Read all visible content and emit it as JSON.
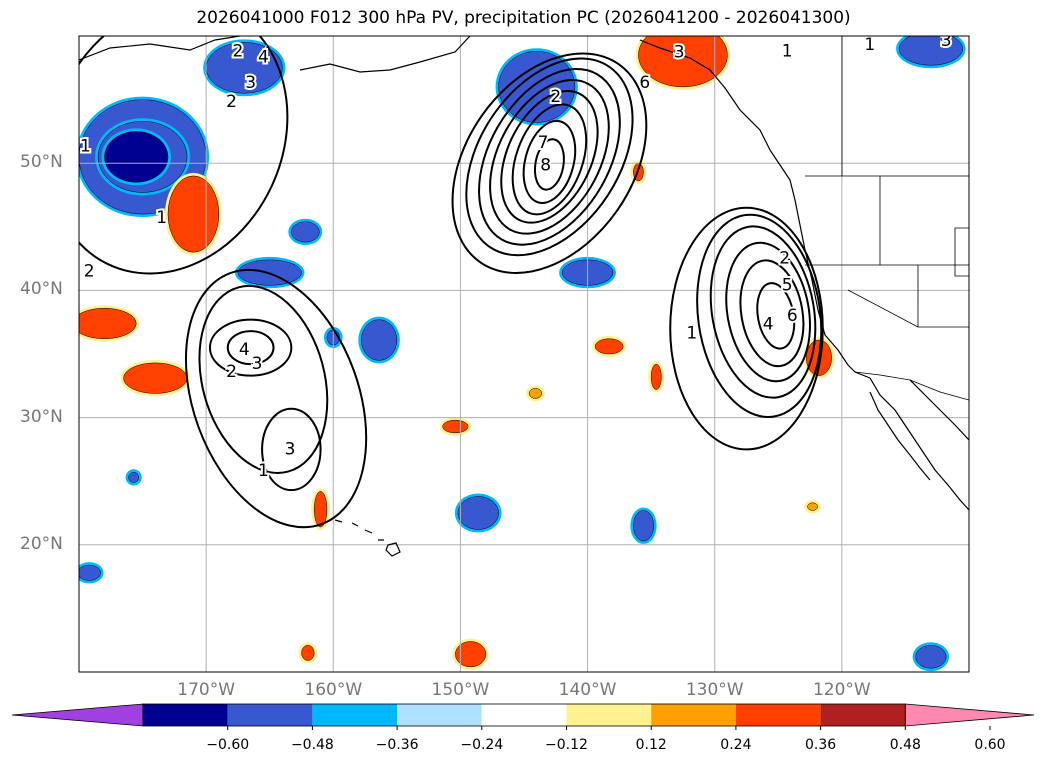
{
  "title": "2026041000 F012 300 hPa PV, precipitation PC (2026041200 - 2026041300)",
  "map": {
    "lon_range": [
      -180,
      -110
    ],
    "lat_range": [
      10,
      60
    ],
    "lat_ticks": [
      {
        "lat": 50,
        "label": "50°N"
      },
      {
        "lat": 40,
        "label": "40°N"
      },
      {
        "lat": 30,
        "label": "30°N"
      },
      {
        "lat": 20,
        "label": "20°N"
      }
    ],
    "lon_ticks": [
      {
        "lon": -170,
        "label": "170°W"
      },
      {
        "lon": -160,
        "label": "160°W"
      },
      {
        "lon": -150,
        "label": "150°W"
      },
      {
        "lon": -140,
        "label": "140°W"
      },
      {
        "lon": -130,
        "label": "130°W"
      },
      {
        "lon": -120,
        "label": "120°W"
      }
    ],
    "contour_labels": [
      {
        "text": "2",
        "lon": -167.5,
        "lat": 58.8
      },
      {
        "text": "4",
        "lon": -165.5,
        "lat": 58.3
      },
      {
        "text": "3",
        "lon": -166.5,
        "lat": 56.3
      },
      {
        "text": "2",
        "lon": -168,
        "lat": 54.8
      },
      {
        "text": "1",
        "lon": -179.5,
        "lat": 51.3
      },
      {
        "text": "1",
        "lon": -173.5,
        "lat": 45.7
      },
      {
        "text": "2",
        "lon": -179.2,
        "lat": 41.5
      },
      {
        "text": "2",
        "lon": -142.5,
        "lat": 55.2
      },
      {
        "text": "7",
        "lon": -143.5,
        "lat": 51.6
      },
      {
        "text": "8",
        "lon": -143.3,
        "lat": 49.8
      },
      {
        "text": "6",
        "lon": -135.5,
        "lat": 56.3
      },
      {
        "text": "3",
        "lon": -132.8,
        "lat": 58.7
      },
      {
        "text": "1",
        "lon": -124.3,
        "lat": 58.8
      },
      {
        "text": "1",
        "lon": -117.8,
        "lat": 59.3
      },
      {
        "text": "3",
        "lon": -111.8,
        "lat": 59.6
      },
      {
        "text": "2",
        "lon": -124.5,
        "lat": 42.5
      },
      {
        "text": "5",
        "lon": -124.3,
        "lat": 40.4
      },
      {
        "text": "6",
        "lon": -123.9,
        "lat": 38.0
      },
      {
        "text": "4",
        "lon": -125.8,
        "lat": 37.3
      },
      {
        "text": "1",
        "lon": -131.8,
        "lat": 36.6
      },
      {
        "text": "4",
        "lon": -167,
        "lat": 35.3
      },
      {
        "text": "3",
        "lon": -166,
        "lat": 34.2
      },
      {
        "text": "2",
        "lon": -168,
        "lat": 33.6
      },
      {
        "text": "3",
        "lon": -163.4,
        "lat": 27.5
      },
      {
        "text": "1",
        "lon": -165.5,
        "lat": 25.8
      }
    ],
    "pv_contours": [
      {
        "level": 1,
        "cx": -173,
        "cy": 52,
        "rx": 9,
        "ry": 11,
        "rot": 25
      },
      {
        "level": 1,
        "cx": -164.5,
        "cy": 31.5,
        "rx": 6.5,
        "ry": 10.5,
        "rot": -20
      },
      {
        "level": 2,
        "cx": -165.5,
        "cy": 33,
        "rx": 4.8,
        "ry": 7.5,
        "rot": -15
      },
      {
        "level": 3,
        "cx": -166.5,
        "cy": 35.5,
        "rx": 3.2,
        "ry": 2.2,
        "rot": 0
      },
      {
        "level": 3,
        "cx": -163.3,
        "cy": 27.5,
        "rx": 2.3,
        "ry": 3.2,
        "rot": 0
      },
      {
        "level": 4,
        "cx": -166.5,
        "cy": 35.5,
        "rx": 1.8,
        "ry": 1.3,
        "rot": 0
      },
      {
        "level": 1,
        "cx": -143,
        "cy": 50,
        "rx": 6.5,
        "ry": 9.5,
        "rot": 35
      },
      {
        "level": 2,
        "cx": -143,
        "cy": 50.5,
        "rx": 5.5,
        "ry": 8.5,
        "rot": 33
      },
      {
        "level": 3,
        "cx": -143,
        "cy": 50.5,
        "rx": 4.7,
        "ry": 7.5,
        "rot": 30
      },
      {
        "level": 4,
        "cx": -143,
        "cy": 50.5,
        "rx": 4.0,
        "ry": 6.5,
        "rot": 28
      },
      {
        "level": 5,
        "cx": -143,
        "cy": 50.5,
        "rx": 3.3,
        "ry": 5.5,
        "rot": 25
      },
      {
        "level": 6,
        "cx": -143,
        "cy": 50.3,
        "rx": 2.6,
        "ry": 4.5,
        "rot": 20
      },
      {
        "level": 7,
        "cx": -143,
        "cy": 50.1,
        "rx": 1.9,
        "ry": 3.3,
        "rot": 15
      },
      {
        "level": 8,
        "cx": -143,
        "cy": 49.9,
        "rx": 1.1,
        "ry": 2.0,
        "rot": 10
      },
      {
        "level": 1,
        "cx": -127.5,
        "cy": 37,
        "rx": 6.0,
        "ry": 9.5,
        "rot": 0
      },
      {
        "level": 2,
        "cx": -126.5,
        "cy": 38,
        "rx": 4.8,
        "ry": 8.0,
        "rot": -8
      },
      {
        "level": 3,
        "cx": -126.2,
        "cy": 38.3,
        "rx": 4.0,
        "ry": 6.8,
        "rot": -10
      },
      {
        "level": 4,
        "cx": -125.8,
        "cy": 38.3,
        "rx": 3.2,
        "ry": 5.5,
        "rot": -10
      },
      {
        "level": 5,
        "cx": -125.5,
        "cy": 38.2,
        "rx": 2.4,
        "ry": 4.2,
        "rot": -10
      },
      {
        "level": 6,
        "cx": -125.2,
        "cy": 38.0,
        "rx": 1.4,
        "ry": 2.6,
        "rot": -10
      }
    ],
    "precip_blobs": [
      {
        "cat": "neg3",
        "cx": -175,
        "cy": 50.5,
        "rx": 5,
        "ry": 4.5
      },
      {
        "cat": "neg4",
        "cx": -175,
        "cy": 50.5,
        "rx": 3.5,
        "ry": 2.8
      },
      {
        "cat": "neg5",
        "cx": -175.5,
        "cy": 50.5,
        "rx": 2.5,
        "ry": 2.0
      },
      {
        "cat": "neg3",
        "cx": -167,
        "cy": 57.5,
        "rx": 3,
        "ry": 2
      },
      {
        "cat": "neg3",
        "cx": -165,
        "cy": 41.4,
        "rx": 2.5,
        "ry": 1.0
      },
      {
        "cat": "neg3",
        "cx": -162.2,
        "cy": 44.6,
        "rx": 1.1,
        "ry": 0.8
      },
      {
        "cat": "neg3",
        "cx": -160,
        "cy": 36.3,
        "rx": 0.5,
        "ry": 0.6
      },
      {
        "cat": "neg3",
        "cx": -156.4,
        "cy": 36.1,
        "rx": 1.4,
        "ry": 1.6
      },
      {
        "cat": "neg3",
        "cx": -144,
        "cy": 56,
        "rx": 3,
        "ry": 2.8
      },
      {
        "cat": "neg3",
        "cx": -140,
        "cy": 41.4,
        "rx": 2,
        "ry": 1.0
      },
      {
        "cat": "neg3",
        "cx": -148.6,
        "cy": 22.5,
        "rx": 1.6,
        "ry": 1.3
      },
      {
        "cat": "neg3",
        "cx": -135.6,
        "cy": 21.5,
        "rx": 0.8,
        "ry": 1.2
      },
      {
        "cat": "neg3",
        "cx": -113,
        "cy": 11.2,
        "rx": 1.2,
        "ry": 0.9
      },
      {
        "cat": "neg3",
        "cx": -113,
        "cy": 59,
        "rx": 2.5,
        "ry": 1.3
      },
      {
        "cat": "neg3",
        "cx": -179.2,
        "cy": 17.8,
        "rx": 0.9,
        "ry": 0.6
      },
      {
        "cat": "neg3",
        "cx": -175.7,
        "cy": 25.3,
        "rx": 0.4,
        "ry": 0.4
      },
      {
        "cat": "pos4",
        "cx": -171,
        "cy": 46,
        "rx": 2,
        "ry": 3
      },
      {
        "cat": "pos4",
        "cx": -178,
        "cy": 37.4,
        "rx": 2.5,
        "ry": 1.2
      },
      {
        "cat": "pos4",
        "cx": -174,
        "cy": 33.1,
        "rx": 2.5,
        "ry": 1.2
      },
      {
        "cat": "pos4",
        "cx": -132.5,
        "cy": 58.5,
        "rx": 3.5,
        "ry": 2.5
      },
      {
        "cat": "pos4",
        "cx": -121.8,
        "cy": 34.7,
        "rx": 1.0,
        "ry": 1.4
      },
      {
        "cat": "pos4",
        "cx": -161,
        "cy": 22.8,
        "rx": 0.5,
        "ry": 1.4
      },
      {
        "cat": "pos4",
        "cx": -149.2,
        "cy": 11.4,
        "rx": 1.2,
        "ry": 1.0
      },
      {
        "cat": "pos3",
        "cx": -138.3,
        "cy": 35.6,
        "rx": 1.1,
        "ry": 0.6
      },
      {
        "cat": "pos3",
        "cx": -134.6,
        "cy": 33.2,
        "rx": 0.4,
        "ry": 1.0
      },
      {
        "cat": "pos3",
        "cx": -150.4,
        "cy": 29.3,
        "rx": 1.0,
        "ry": 0.5
      },
      {
        "cat": "pos3",
        "cx": -136,
        "cy": 49.3,
        "rx": 0.4,
        "ry": 0.7
      },
      {
        "cat": "pos3",
        "cx": -162,
        "cy": 11.5,
        "rx": 0.5,
        "ry": 0.6
      },
      {
        "cat": "pos2",
        "cx": -144.1,
        "cy": 31.9,
        "rx": 0.5,
        "ry": 0.4
      },
      {
        "cat": "pos2",
        "cx": -122.3,
        "cy": 23.0,
        "rx": 0.4,
        "ry": 0.3
      }
    ]
  },
  "colorbar": {
    "colors": [
      "#a040e0",
      "#000090",
      "#3858d0",
      "#00b8ff",
      "#b0e0ff",
      "#ffffff",
      "#fff090",
      "#ffa000",
      "#ff4000",
      "#b02020",
      "#ff88b0"
    ],
    "labels": [
      "−0.60",
      "−0.48",
      "−0.36",
      "−0.24",
      "−0.12",
      "0.12",
      "0.24",
      "0.36",
      "0.48",
      "0.60"
    ]
  },
  "colors": {
    "neg5": "#000090",
    "neg4": "#3858d0",
    "neg3": "#3858d0",
    "pos2": "#ffa000",
    "pos3": "#ff4000",
    "pos4": "#ff4000",
    "grid": "#b0b0b0",
    "contour": "#000000"
  }
}
